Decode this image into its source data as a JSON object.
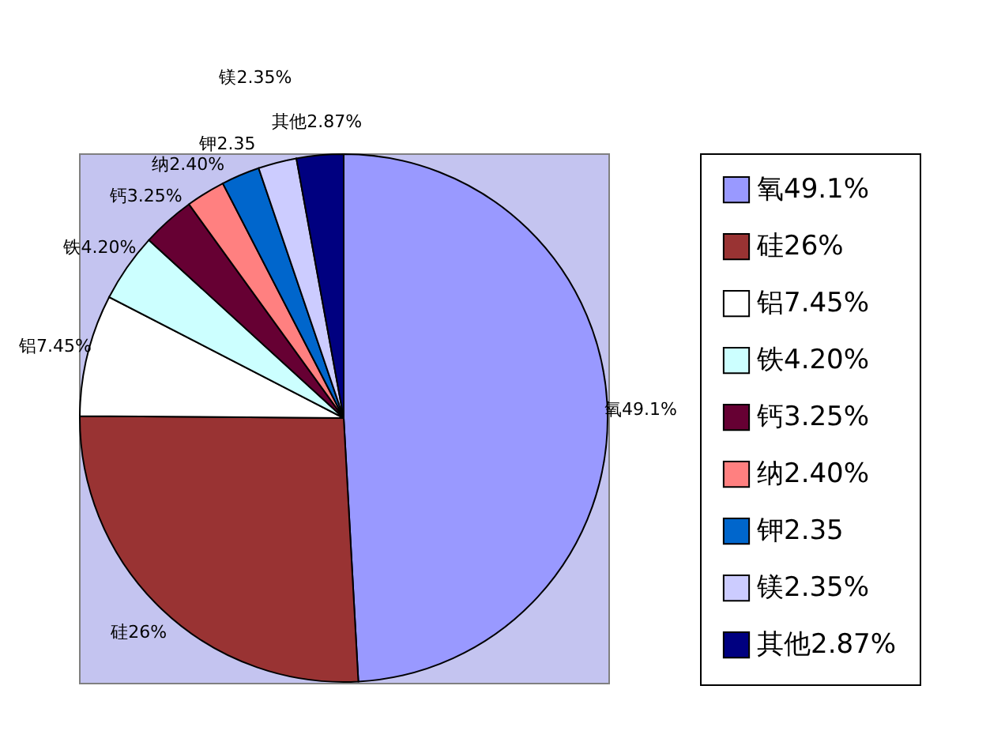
{
  "chart_data": {
    "type": "pie",
    "categories": [
      "氧49.1%",
      "硅26%",
      "铝7.45%",
      "铁4.20%",
      "钙3.25%",
      "纳2.40%",
      "钾2.35",
      "镁2.35%",
      "其他2.87%"
    ],
    "values": [
      49.1,
      26,
      7.45,
      4.2,
      3.25,
      2.4,
      2.35,
      2.35,
      2.87
    ],
    "colors": [
      "#9999ff",
      "#993333",
      "#ffffff",
      "#ccffff",
      "#660033",
      "#ff8080",
      "#0066cc",
      "#ccccff",
      "#000080"
    ],
    "legend": "right"
  }
}
